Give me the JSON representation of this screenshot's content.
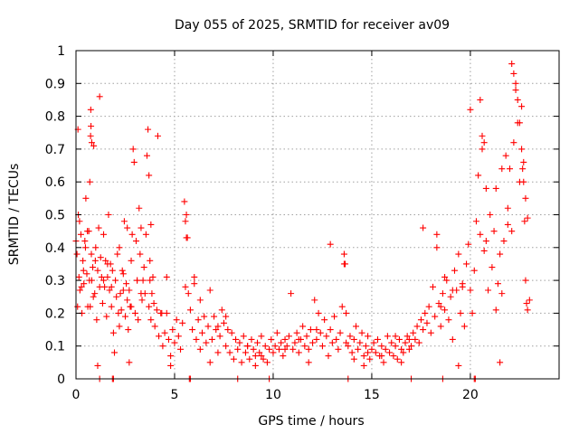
{
  "chart_data": {
    "type": "scatter",
    "title": "Day 055 of 2025, SRMTID for receiver av09",
    "xlabel": "GPS time / hours",
    "ylabel": "SRMTID / TECUs",
    "xlim": [
      0,
      24.5
    ],
    "ylim": [
      0,
      1
    ],
    "grid": true,
    "marker": "+",
    "color": "#ff0000",
    "x_ticks": [
      0,
      5,
      10,
      15,
      20
    ],
    "x_tick_labels": [
      "0",
      "5",
      "10",
      "15",
      "20"
    ],
    "y_ticks": [
      0,
      0.1,
      0.2,
      0.3,
      0.4,
      0.5,
      0.6,
      0.7,
      0.8,
      0.9,
      1
    ],
    "y_tick_labels": [
      "0",
      "0.1",
      "0.2",
      "0.3",
      "0.4",
      "0.5",
      "0.6",
      "0.7",
      "0.8",
      "0.9",
      "1"
    ],
    "series": [
      {
        "name": "SRMTID",
        "x": [
          0.0,
          0.05,
          0.1,
          0.12,
          0.15,
          0.2,
          0.25,
          0.3,
          0.35,
          0.4,
          0.45,
          0.5,
          0.55,
          0.6,
          0.65,
          0.7,
          0.75,
          0.8,
          0.85,
          0.9,
          0.95,
          1.0,
          1.05,
          1.1,
          1.15,
          1.2,
          1.25,
          1.3,
          1.35,
          1.4,
          1.45,
          1.5,
          1.55,
          1.6,
          1.65,
          1.7,
          1.75,
          1.8,
          1.85,
          1.9,
          1.95,
          2.0,
          2.05,
          2.1,
          2.15,
          2.2,
          2.25,
          2.3,
          2.35,
          2.4,
          2.45,
          2.5,
          2.55,
          2.6,
          2.65,
          2.7,
          2.75,
          2.8,
          2.85,
          2.9,
          2.95,
          3.0,
          3.05,
          3.1,
          3.15,
          3.2,
          3.25,
          3.3,
          3.35,
          3.4,
          3.45,
          3.5,
          3.55,
          3.6,
          3.65,
          3.7,
          3.75,
          3.8,
          3.85,
          3.9,
          3.95,
          4.0,
          4.1,
          4.2,
          4.3,
          4.4,
          4.5,
          4.6,
          4.7,
          4.8,
          4.9,
          5.0,
          5.1,
          5.2,
          5.3,
          5.4,
          5.5,
          5.55,
          5.6,
          5.7,
          5.8,
          5.9,
          6.0,
          6.1,
          6.2,
          6.3,
          6.4,
          6.5,
          6.6,
          6.7,
          6.8,
          6.9,
          7.0,
          7.1,
          7.2,
          7.3,
          7.4,
          7.5,
          7.6,
          7.7,
          7.8,
          7.9,
          8.0,
          8.1,
          8.2,
          8.3,
          8.4,
          8.5,
          8.6,
          8.7,
          8.8,
          8.9,
          9.0,
          9.1,
          9.2,
          9.3,
          9.4,
          9.5,
          9.6,
          9.7,
          9.8,
          9.9,
          10.0,
          10.1,
          10.2,
          10.3,
          10.4,
          10.5,
          10.6,
          10.7,
          10.8,
          10.9,
          11.0,
          11.1,
          11.2,
          11.3,
          11.4,
          11.5,
          11.6,
          11.7,
          11.8,
          11.9,
          12.0,
          12.1,
          12.2,
          12.3,
          12.4,
          12.5,
          12.6,
          12.7,
          12.8,
          12.9,
          13.0,
          13.1,
          13.2,
          13.3,
          13.4,
          13.5,
          13.6,
          13.7,
          13.8,
          13.9,
          14.0,
          14.1,
          14.2,
          14.3,
          14.4,
          14.5,
          14.6,
          14.7,
          14.8,
          14.9,
          15.0,
          15.1,
          15.2,
          15.3,
          15.4,
          15.5,
          15.6,
          15.7,
          15.8,
          15.9,
          16.0,
          16.1,
          16.2,
          16.3,
          16.4,
          16.5,
          16.6,
          16.7,
          16.8,
          16.9,
          17.0,
          17.1,
          17.2,
          17.3,
          17.4,
          17.5,
          17.6,
          17.7,
          17.8,
          17.9,
          18.0,
          18.1,
          18.2,
          18.3,
          18.4,
          18.5,
          18.6,
          18.7,
          18.8,
          18.9,
          19.0,
          19.1,
          19.2,
          19.3,
          19.4,
          19.5,
          19.6,
          19.7,
          19.8,
          19.9,
          20.0,
          20.1,
          20.2,
          20.3,
          20.4,
          20.5,
          20.6,
          20.7,
          20.8,
          20.9,
          21.0,
          21.1,
          21.2,
          21.3,
          21.4,
          21.5,
          21.6,
          21.7,
          21.8,
          21.9,
          22.0,
          22.1,
          22.2,
          22.3,
          22.4,
          22.5,
          22.6,
          22.7,
          22.8,
          22.9,
          23.0,
          0.08,
          0.18,
          0.28,
          0.38,
          0.48,
          0.58,
          0.68,
          0.78,
          0.88,
          0.98,
          0.72,
          0.74,
          0.76,
          0.8,
          1.2,
          1.4,
          1.6,
          1.8,
          2.2,
          2.4,
          2.6,
          2.8,
          3.1,
          3.3,
          3.7,
          3.75,
          3.8,
          4.15,
          4.35,
          4.6,
          5.55,
          5.6,
          5.65,
          6.0,
          6.3,
          7.2,
          7.6,
          8.7,
          9.4,
          10.6,
          11.3,
          12.2,
          12.9,
          13.6,
          13.65,
          13.7,
          14.1,
          14.8,
          15.5,
          16.2,
          16.9,
          17.6,
          18.3,
          18.5,
          18.7,
          19.1,
          19.6,
          20.0,
          20.5,
          20.6,
          20.7,
          20.8,
          21.3,
          21.6,
          21.9,
          22.1,
          22.2,
          22.3,
          22.4,
          22.5,
          22.6,
          22.65,
          22.7,
          22.75,
          22.8,
          22.85,
          22.9,
          1.2,
          1.85,
          1.9,
          5.75,
          5.8,
          8.2,
          9.8,
          13.8,
          17.0,
          18.6,
          20.2,
          20.25,
          1.1,
          2.7,
          4.8,
          6.8,
          9.1,
          11.8,
          14.6,
          16.5,
          19.4,
          21.5
        ],
        "values": [
          0.42,
          0.38,
          0.76,
          0.5,
          0.31,
          0.27,
          0.44,
          0.2,
          0.36,
          0.29,
          0.42,
          0.55,
          0.32,
          0.22,
          0.45,
          0.6,
          0.82,
          0.3,
          0.34,
          0.71,
          0.26,
          0.4,
          0.18,
          0.33,
          0.46,
          0.28,
          0.37,
          0.31,
          0.23,
          0.44,
          0.28,
          0.36,
          0.19,
          0.31,
          0.5,
          0.27,
          0.35,
          0.22,
          0.33,
          0.14,
          0.08,
          0.3,
          0.25,
          0.38,
          0.2,
          0.16,
          0.26,
          0.21,
          0.33,
          0.27,
          0.48,
          0.19,
          0.29,
          0.24,
          0.15,
          0.27,
          0.22,
          0.36,
          0.44,
          0.7,
          0.66,
          0.2,
          0.42,
          0.3,
          0.18,
          0.52,
          0.38,
          0.46,
          0.24,
          0.3,
          0.34,
          0.26,
          0.44,
          0.68,
          0.76,
          0.22,
          0.3,
          0.18,
          0.26,
          0.31,
          0.23,
          0.16,
          0.21,
          0.13,
          0.2,
          0.1,
          0.14,
          0.2,
          0.12,
          0.07,
          0.15,
          0.11,
          0.18,
          0.13,
          0.09,
          0.17,
          0.54,
          0.48,
          0.43,
          0.26,
          0.21,
          0.15,
          0.31,
          0.12,
          0.18,
          0.09,
          0.14,
          0.19,
          0.11,
          0.16,
          0.27,
          0.12,
          0.19,
          0.15,
          0.08,
          0.13,
          0.21,
          0.17,
          0.1,
          0.15,
          0.08,
          0.14,
          0.06,
          0.12,
          0.09,
          0.11,
          0.05,
          0.13,
          0.08,
          0.1,
          0.06,
          0.12,
          0.09,
          0.07,
          0.11,
          0.08,
          0.13,
          0.06,
          0.1,
          0.05,
          0.09,
          0.12,
          0.08,
          0.1,
          0.14,
          0.09,
          0.11,
          0.07,
          0.12,
          0.1,
          0.13,
          0.26,
          0.09,
          0.11,
          0.14,
          0.08,
          0.12,
          0.16,
          0.1,
          0.13,
          0.09,
          0.15,
          0.11,
          0.24,
          0.12,
          0.2,
          0.14,
          0.1,
          0.18,
          0.13,
          0.07,
          0.15,
          0.11,
          0.19,
          0.12,
          0.09,
          0.14,
          0.22,
          0.35,
          0.2,
          0.1,
          0.13,
          0.08,
          0.12,
          0.16,
          0.09,
          0.11,
          0.14,
          0.07,
          0.1,
          0.13,
          0.06,
          0.09,
          0.11,
          0.08,
          0.12,
          0.07,
          0.1,
          0.05,
          0.09,
          0.13,
          0.08,
          0.11,
          0.07,
          0.1,
          0.06,
          0.12,
          0.09,
          0.08,
          0.11,
          0.13,
          0.09,
          0.1,
          0.14,
          0.12,
          0.16,
          0.11,
          0.18,
          0.15,
          0.2,
          0.17,
          0.22,
          0.14,
          0.28,
          0.19,
          0.4,
          0.23,
          0.16,
          0.26,
          0.21,
          0.3,
          0.18,
          0.25,
          0.12,
          0.33,
          0.27,
          0.38,
          0.2,
          0.29,
          0.16,
          0.35,
          0.41,
          0.27,
          0.2,
          0.33,
          0.48,
          0.62,
          0.44,
          0.7,
          0.39,
          0.58,
          0.27,
          0.5,
          0.34,
          0.45,
          0.21,
          0.29,
          0.38,
          0.26,
          0.42,
          0.68,
          0.52,
          0.64,
          0.45,
          0.72,
          0.88,
          0.78,
          0.6,
          0.83,
          0.66,
          0.55,
          0.49,
          0.24,
          0.22,
          0.48,
          0.28,
          0.33,
          0.4,
          0.45,
          0.3,
          0.38,
          0.25,
          0.36,
          0.22,
          0.74,
          0.77,
          0.72,
          0.86,
          0.3,
          0.35,
          0.28,
          0.4,
          0.32,
          0.46,
          0.22,
          0.3,
          0.26,
          0.62,
          0.36,
          0.47,
          0.74,
          0.2,
          0.31,
          0.28,
          0.5,
          0.43,
          0.29,
          0.24,
          0.16,
          0.19,
          0.1,
          0.07,
          0.09,
          0.12,
          0.15,
          0.41,
          0.38,
          0.35,
          0.11,
          0.06,
          0.08,
          0.07,
          0.13,
          0.12,
          0.46,
          0.44,
          0.22,
          0.31,
          0.27,
          0.28,
          0.82,
          0.85,
          0.74,
          0.72,
          0.42,
          0.58,
          0.64,
          0.47,
          0.96,
          0.93,
          0.9,
          0.85,
          0.78,
          0.7,
          0.64,
          0.6,
          0.48,
          0.3,
          0.23,
          0.21,
          0.0,
          0.0,
          0.0,
          0.0,
          0.0,
          0.0,
          0.0,
          0.0,
          0.0,
          0.0,
          0.0,
          0.0,
          0.04,
          0.05,
          0.04,
          0.05,
          0.04,
          0.05,
          0.04,
          0.05,
          0.04,
          0.05
        ]
      }
    ]
  }
}
